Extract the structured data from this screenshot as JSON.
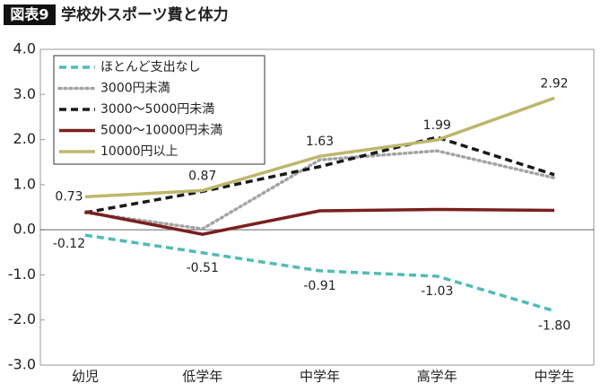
{
  "chart_data": {
    "type": "line",
    "title_label": "図表9",
    "title": "学校外スポーツ費と体力",
    "categories": [
      "幼児",
      "低学年",
      "中学年",
      "高学年",
      "中学生"
    ],
    "series": [
      {
        "name": "ほとんど支出なし",
        "color": "#4fbcb8",
        "dash": "dashed",
        "values": [
          -0.12,
          -0.51,
          -0.91,
          -1.03,
          -1.8
        ],
        "value_labels": [
          "-0.12",
          "-0.51",
          "-0.91",
          "-1.03",
          "-1.80"
        ]
      },
      {
        "name": "3000円未満",
        "color": "#a3a3a3",
        "dash": "dotted",
        "values": [
          0.38,
          0.02,
          1.55,
          1.75,
          1.15
        ]
      },
      {
        "name": "3000～5000円未満",
        "color": "#1a1a1a",
        "dash": "dashed",
        "values": [
          0.38,
          0.85,
          1.4,
          2.05,
          1.22
        ]
      },
      {
        "name": "5000～10000円未満",
        "color": "#7a1f1f",
        "dash": "solid",
        "values": [
          0.4,
          -0.1,
          0.42,
          0.45,
          0.43
        ]
      },
      {
        "name": "10000円以上",
        "color": "#bdb76b",
        "dash": "solid",
        "values": [
          0.73,
          0.87,
          1.63,
          1.99,
          2.92
        ],
        "show_labels": true
      }
    ],
    "ylim": [
      -3,
      4
    ],
    "yticks": [
      {
        "value": 4,
        "label": "4.0"
      },
      {
        "value": 3,
        "label": "3.0"
      },
      {
        "value": 2,
        "label": "2.0"
      },
      {
        "value": 1,
        "label": "1.0"
      },
      {
        "value": 0,
        "label": "0.0"
      },
      {
        "value": -1,
        "label": "-1.0"
      },
      {
        "value": -2,
        "label": "-2.0"
      },
      {
        "value": -3,
        "label": "-3.0"
      }
    ],
    "legend": "upper left"
  }
}
